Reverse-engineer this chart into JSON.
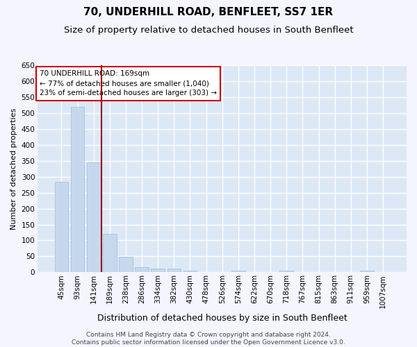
{
  "title": "70, UNDERHILL ROAD, BENFLEET, SS7 1ER",
  "subtitle": "Size of property relative to detached houses in South Benfleet",
  "xlabel": "Distribution of detached houses by size in South Benfleet",
  "ylabel": "Number of detached properties",
  "categories": [
    "45sqm",
    "93sqm",
    "141sqm",
    "189sqm",
    "238sqm",
    "286sqm",
    "334sqm",
    "382sqm",
    "430sqm",
    "478sqm",
    "526sqm",
    "574sqm",
    "622sqm",
    "670sqm",
    "718sqm",
    "767sqm",
    "815sqm",
    "863sqm",
    "911sqm",
    "959sqm",
    "1007sqm"
  ],
  "values": [
    283,
    520,
    345,
    120,
    48,
    16,
    11,
    11,
    6,
    0,
    0,
    6,
    0,
    0,
    6,
    0,
    0,
    0,
    0,
    6,
    0
  ],
  "bar_color": "#c5d8ed",
  "bar_edge_color": "#a0bdd8",
  "vline_x_index": 2.5,
  "vline_color": "#990000",
  "annotation_text": "70 UNDERHILL ROAD: 169sqm\n← 77% of detached houses are smaller (1,040)\n23% of semi-detached houses are larger (303) →",
  "annotation_box_color": "#ffffff",
  "annotation_box_edge": "#cc0000",
  "ylim": [
    0,
    650
  ],
  "yticks": [
    0,
    50,
    100,
    150,
    200,
    250,
    300,
    350,
    400,
    450,
    500,
    550,
    600,
    650
  ],
  "plot_bg_color": "#dce8f5",
  "fig_bg_color": "#f5f5ff",
  "grid_color": "#ffffff",
  "footer": "Contains HM Land Registry data © Crown copyright and database right 2024.\nContains public sector information licensed under the Open Government Licence v3.0.",
  "title_fontsize": 11,
  "subtitle_fontsize": 9.5,
  "xlabel_fontsize": 9,
  "ylabel_fontsize": 8,
  "tick_fontsize": 7.5,
  "footer_fontsize": 6.5,
  "annot_fontsize": 7.5
}
